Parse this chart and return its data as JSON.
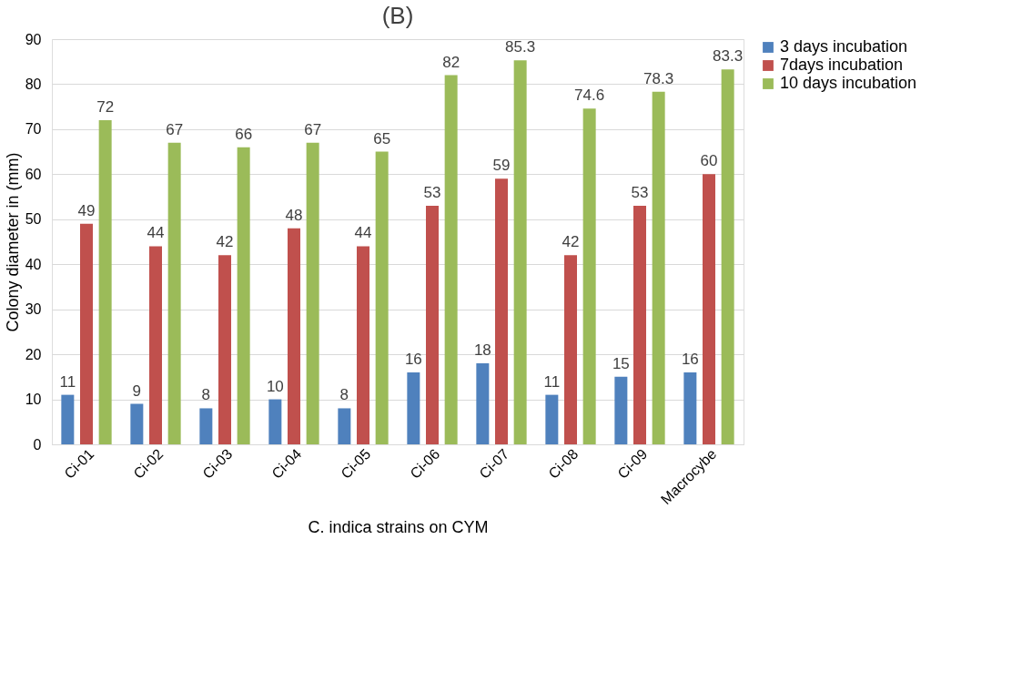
{
  "chart_data": {
    "type": "bar",
    "title": "(B)",
    "xlabel": "C. indica strains on CYM",
    "ylabel": "Colony diameter in (mm)",
    "categories": [
      "Ci-01",
      "Ci-02",
      "Ci-03",
      "Ci-04",
      "Ci-05",
      "Ci-06",
      "Ci-07",
      "Ci-08",
      "Ci-09",
      "Macrocybe"
    ],
    "series": [
      {
        "name": "3 days incubation",
        "color": "#4f81bd",
        "values": [
          11,
          9,
          8,
          10,
          8,
          16,
          18,
          11,
          15,
          16
        ]
      },
      {
        "name": "7days incubation",
        "color": "#c0504d",
        "values": [
          49,
          44,
          42,
          48,
          44,
          53,
          59,
          42,
          53,
          60
        ]
      },
      {
        "name": "10 days incubation",
        "color": "#9bbb59",
        "values": [
          72,
          67,
          66,
          67,
          65,
          82,
          85.3,
          74.6,
          78.3,
          83.3
        ]
      }
    ],
    "ylim": [
      0,
      90
    ],
    "yticks": [
      0,
      10,
      20,
      30,
      40,
      50,
      60,
      70,
      80,
      90
    ],
    "grid": "y",
    "legend": "right",
    "data_labels": true
  }
}
